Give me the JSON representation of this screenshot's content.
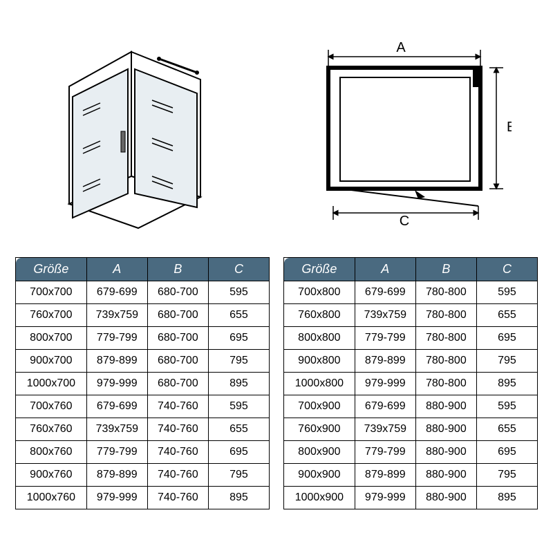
{
  "header_fill": "#4a6a80",
  "header_text": "#ffffff",
  "border_color": "#000000",
  "cell_text": "#000000",
  "bg": "#ffffff",
  "columns": [
    "Größe",
    "A",
    "B",
    "C"
  ],
  "table_left": {
    "rows": [
      [
        "700x700",
        "679-699",
        "680-700",
        "595"
      ],
      [
        "760x700",
        "739x759",
        "680-700",
        "655"
      ],
      [
        "800x700",
        "779-799",
        "680-700",
        "695"
      ],
      [
        "900x700",
        "879-899",
        "680-700",
        "795"
      ],
      [
        "1000x700",
        "979-999",
        "680-700",
        "895"
      ],
      [
        "700x760",
        "679-699",
        "740-760",
        "595"
      ],
      [
        "760x760",
        "739x759",
        "740-760",
        "655"
      ],
      [
        "800x760",
        "779-799",
        "740-760",
        "695"
      ],
      [
        "900x760",
        "879-899",
        "740-760",
        "795"
      ],
      [
        "1000x760",
        "979-999",
        "740-760",
        "895"
      ]
    ]
  },
  "table_right": {
    "rows": [
      [
        "700x800",
        "679-699",
        "780-800",
        "595"
      ],
      [
        "760x800",
        "739x759",
        "780-800",
        "655"
      ],
      [
        "800x800",
        "779-799",
        "780-800",
        "695"
      ],
      [
        "900x800",
        "879-899",
        "780-800",
        "795"
      ],
      [
        "1000x800",
        "979-999",
        "780-800",
        "895"
      ],
      [
        "700x900",
        "679-699",
        "880-900",
        "595"
      ],
      [
        "760x900",
        "739x759",
        "880-900",
        "655"
      ],
      [
        "800x900",
        "779-799",
        "880-900",
        "695"
      ],
      [
        "900x900",
        "879-899",
        "880-900",
        "795"
      ],
      [
        "1000x900",
        "979-999",
        "880-900",
        "895"
      ]
    ]
  },
  "diagram_labels": {
    "A": "A",
    "B": "B",
    "C": "C"
  }
}
